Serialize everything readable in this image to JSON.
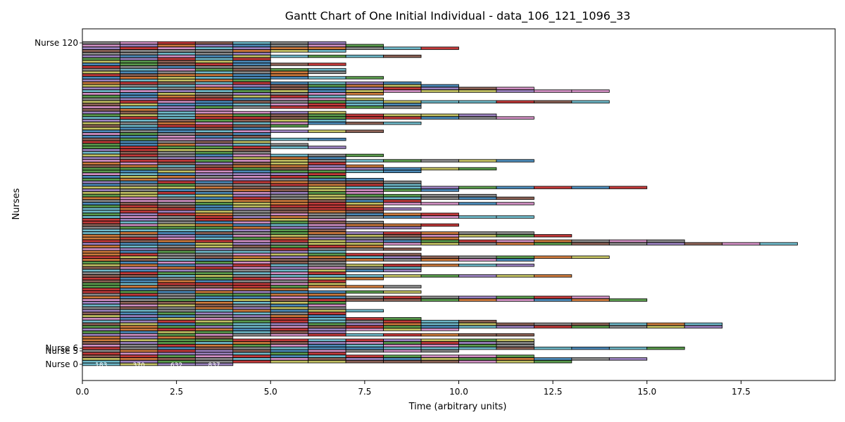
{
  "chart_data": {
    "type": "bar",
    "orientation": "horizontal-gantt",
    "title": "Gantt Chart of One Initial Individual - data_106_121_1096_33",
    "xlabel": "Time (arbitrary units)",
    "ylabel": "Nurses",
    "xlim": [
      0,
      20
    ],
    "x_ticks": [
      0.0,
      2.5,
      5.0,
      7.5,
      10.0,
      12.5,
      15.0,
      17.5
    ],
    "x_tick_labels": [
      "0.0",
      "2.5",
      "5.0",
      "7.5",
      "10.0",
      "12.5",
      "15.0",
      "17.5"
    ],
    "y_categories_visible": [
      "Nurse 120",
      "Nurse 6",
      "Nurse 5",
      "Nurse 0"
    ],
    "palette": [
      "#4c8ab8",
      "#cc7a3d",
      "#5a9b4d",
      "#c23a3a",
      "#9b82bf",
      "#8c6256",
      "#d08fc2",
      "#8a8a8a",
      "#c2c063",
      "#6fb8c8"
    ],
    "nurse_count": 121,
    "nurse_end_times": [
      4,
      13,
      15,
      12,
      7,
      10,
      16,
      12,
      12,
      12,
      4,
      12,
      7,
      10,
      17,
      17,
      11,
      9,
      7,
      7,
      8,
      7,
      7,
      7,
      15,
      14,
      7,
      9,
      6,
      9,
      7,
      7,
      8,
      13,
      7,
      9,
      9,
      12,
      7,
      12,
      14,
      9,
      7,
      9,
      8,
      19,
      16,
      10,
      13,
      12,
      7,
      9,
      10,
      8,
      7,
      12,
      10,
      8,
      9,
      8,
      12,
      9,
      12,
      11,
      8,
      10,
      15,
      9,
      9,
      8,
      7,
      7,
      9,
      11,
      8,
      7,
      12,
      7,
      8,
      5,
      5,
      7,
      6,
      5,
      7,
      5,
      5,
      8,
      5,
      6,
      9,
      7,
      12,
      11,
      7,
      4,
      9,
      9,
      14,
      8,
      7,
      8,
      14,
      12,
      10,
      9,
      5,
      8,
      6,
      7,
      7,
      5,
      7,
      5,
      5,
      9,
      5,
      7,
      10,
      8,
      7
    ],
    "sample_task_labels_nurse_0": [
      "183",
      "370",
      "632",
      "837"
    ]
  }
}
